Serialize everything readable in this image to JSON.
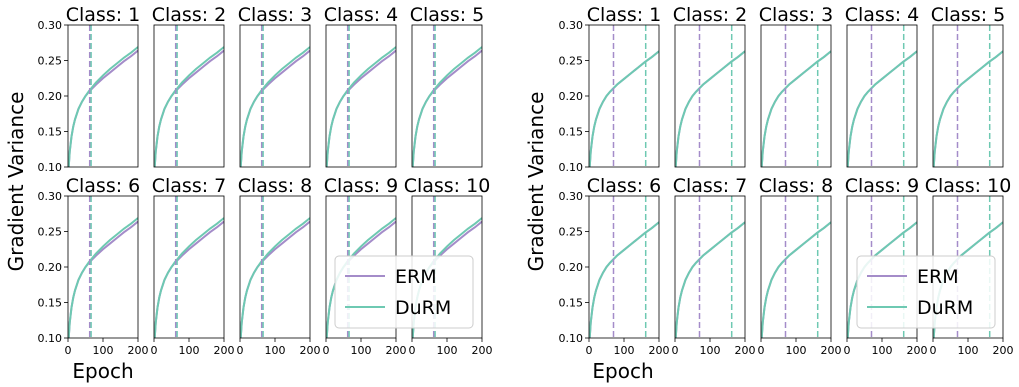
{
  "chart_data": [
    {
      "type": "line",
      "panel": "left",
      "ylabel": "Gradient Variance",
      "xlabel": "Epoch",
      "xlim": [
        0,
        200
      ],
      "ylim": [
        0.1,
        0.3
      ],
      "xticks": [
        "0",
        "100",
        "200"
      ],
      "yticks": [
        "0.10",
        "0.15",
        "0.20",
        "0.25",
        "0.30"
      ],
      "grid": false,
      "legend_position": "lower-right",
      "subplots": [
        {
          "title": "Class: 1",
          "vlines": [
            {
              "x": 62,
              "series": "ERM"
            },
            {
              "x": 66,
              "series": "DuRM"
            }
          ]
        },
        {
          "title": "Class: 2",
          "vlines": [
            {
              "x": 62,
              "series": "ERM"
            },
            {
              "x": 66,
              "series": "DuRM"
            }
          ]
        },
        {
          "title": "Class: 3",
          "vlines": [
            {
              "x": 62,
              "series": "ERM"
            },
            {
              "x": 66,
              "series": "DuRM"
            }
          ]
        },
        {
          "title": "Class: 4",
          "vlines": [
            {
              "x": 62,
              "series": "ERM"
            },
            {
              "x": 66,
              "series": "DuRM"
            }
          ]
        },
        {
          "title": "Class: 5",
          "vlines": [
            {
              "x": 62,
              "series": "ERM"
            },
            {
              "x": 66,
              "series": "DuRM"
            }
          ]
        },
        {
          "title": "Class: 6",
          "vlines": [
            {
              "x": 62,
              "series": "ERM"
            },
            {
              "x": 66,
              "series": "DuRM"
            }
          ]
        },
        {
          "title": "Class: 7",
          "vlines": [
            {
              "x": 62,
              "series": "ERM"
            },
            {
              "x": 66,
              "series": "DuRM"
            }
          ]
        },
        {
          "title": "Class: 8",
          "vlines": [
            {
              "x": 62,
              "series": "ERM"
            },
            {
              "x": 66,
              "series": "DuRM"
            }
          ]
        },
        {
          "title": "Class: 9",
          "vlines": [
            {
              "x": 62,
              "series": "ERM"
            },
            {
              "x": 66,
              "series": "DuRM"
            }
          ]
        },
        {
          "title": "Class: 10",
          "vlines": [
            {
              "x": 62,
              "series": "ERM"
            },
            {
              "x": 66,
              "series": "DuRM"
            }
          ]
        }
      ],
      "x": [
        0,
        2,
        5,
        10,
        15,
        20,
        30,
        40,
        50,
        60,
        70,
        80,
        100,
        120,
        140,
        160,
        180,
        200
      ],
      "series": [
        {
          "name": "ERM",
          "color": "#a48cc9",
          "values": [
            0.08,
            0.1,
            0.122,
            0.143,
            0.157,
            0.167,
            0.182,
            0.192,
            0.2,
            0.206,
            0.211,
            0.216,
            0.225,
            0.233,
            0.241,
            0.249,
            0.256,
            0.264
          ]
        },
        {
          "name": "DuRM",
          "color": "#6ec9b2",
          "values": [
            0.08,
            0.1,
            0.122,
            0.143,
            0.157,
            0.167,
            0.182,
            0.192,
            0.2,
            0.207,
            0.213,
            0.219,
            0.229,
            0.238,
            0.246,
            0.254,
            0.261,
            0.269
          ]
        }
      ]
    },
    {
      "type": "line",
      "panel": "right",
      "ylabel": "Gradient Variance",
      "xlabel": "Epoch",
      "xlim": [
        0,
        200
      ],
      "ylim": [
        0.1,
        0.3
      ],
      "xticks": [
        "0",
        "100",
        "200"
      ],
      "yticks": [
        "0.10",
        "0.15",
        "0.20",
        "0.25",
        "0.30"
      ],
      "grid": false,
      "legend_position": "lower-right",
      "subplots": [
        {
          "title": "Class: 1",
          "vlines": [
            {
              "x": 70,
              "series": "ERM"
            },
            {
              "x": 162,
              "series": "DuRM"
            }
          ]
        },
        {
          "title": "Class: 2",
          "vlines": [
            {
              "x": 70,
              "series": "ERM"
            },
            {
              "x": 162,
              "series": "DuRM"
            }
          ]
        },
        {
          "title": "Class: 3",
          "vlines": [
            {
              "x": 70,
              "series": "ERM"
            },
            {
              "x": 162,
              "series": "DuRM"
            }
          ]
        },
        {
          "title": "Class: 4",
          "vlines": [
            {
              "x": 70,
              "series": "ERM"
            },
            {
              "x": 162,
              "series": "DuRM"
            }
          ]
        },
        {
          "title": "Class: 5",
          "vlines": [
            {
              "x": 70,
              "series": "ERM"
            },
            {
              "x": 162,
              "series": "DuRM"
            }
          ]
        },
        {
          "title": "Class: 6",
          "vlines": [
            {
              "x": 70,
              "series": "ERM"
            },
            {
              "x": 162,
              "series": "DuRM"
            }
          ]
        },
        {
          "title": "Class: 7",
          "vlines": [
            {
              "x": 70,
              "series": "ERM"
            },
            {
              "x": 162,
              "series": "DuRM"
            }
          ]
        },
        {
          "title": "Class: 8",
          "vlines": [
            {
              "x": 70,
              "series": "ERM"
            },
            {
              "x": 162,
              "series": "DuRM"
            }
          ]
        },
        {
          "title": "Class: 9",
          "vlines": [
            {
              "x": 70,
              "series": "ERM"
            },
            {
              "x": 162,
              "series": "DuRM"
            }
          ]
        },
        {
          "title": "Class: 10",
          "vlines": [
            {
              "x": 70,
              "series": "ERM"
            },
            {
              "x": 162,
              "series": "DuRM"
            }
          ]
        }
      ],
      "x": [
        0,
        2,
        5,
        10,
        15,
        20,
        30,
        40,
        50,
        60,
        70,
        80,
        100,
        120,
        140,
        160,
        180,
        200
      ],
      "series": [
        {
          "name": "ERM",
          "color": "#a48cc9",
          "values": [
            0.08,
            0.1,
            0.122,
            0.143,
            0.157,
            0.167,
            0.182,
            0.192,
            0.2,
            0.206,
            0.211,
            0.216,
            0.224,
            0.232,
            0.24,
            0.248,
            0.255,
            0.263
          ]
        },
        {
          "name": "DuRM",
          "color": "#6ec9b2",
          "values": [
            0.08,
            0.1,
            0.122,
            0.143,
            0.157,
            0.167,
            0.182,
            0.192,
            0.2,
            0.206,
            0.211,
            0.216,
            0.224,
            0.232,
            0.24,
            0.248,
            0.255,
            0.263
          ]
        }
      ]
    }
  ]
}
